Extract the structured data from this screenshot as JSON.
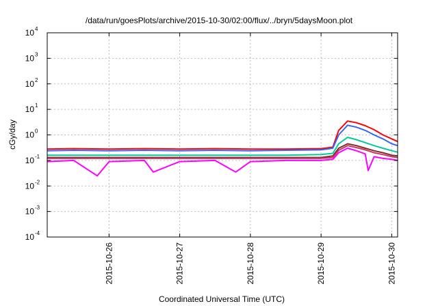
{
  "chart_data": {
    "type": "line",
    "title": "/data/run/goesPlots/archive/2015-10-30/02:00/flux/../bryn/5daysMoon.plot",
    "xlabel": "Coordinated Universal Time (UTC)",
    "ylabel": "cGy/day",
    "yscale": "log",
    "ylim": [
      0.0001,
      10000
    ],
    "xlim": [
      "2015-10-25T03:00",
      "2015-10-30T02:00"
    ],
    "grid": "dashed, at tick positions",
    "legend": "none",
    "y_ticks": [
      {
        "exp": "-4",
        "value": 0.0001
      },
      {
        "exp": "-3",
        "value": 0.001
      },
      {
        "exp": "-2",
        "value": 0.01
      },
      {
        "exp": "-1",
        "value": 0.1
      },
      {
        "value": 1,
        "label": "10",
        "exp": "0"
      },
      {
        "value": 10,
        "label": "10",
        "exp": "1"
      },
      {
        "value": 100,
        "label": "10",
        "exp": "2"
      },
      {
        "value": 1000,
        "label": "10",
        "exp": "3"
      },
      {
        "value": 10000,
        "label": "10",
        "exp": "4"
      }
    ],
    "x_ticks": [
      "2015-10-26",
      "2015-10-27",
      "2015-10-28",
      "2015-10-29",
      "2015-10-30"
    ],
    "y_tick_base": "10",
    "series": [
      {
        "color": "#ff0000",
        "points": [
          [
            "2015-10-25T03:00",
            0.28
          ],
          [
            "2015-10-25T12:00",
            0.29
          ],
          [
            "2015-10-26T00:00",
            0.28
          ],
          [
            "2015-10-26T12:00",
            0.29
          ],
          [
            "2015-10-27T00:00",
            0.28
          ],
          [
            "2015-10-27T12:00",
            0.29
          ],
          [
            "2015-10-28T00:00",
            0.28
          ],
          [
            "2015-10-28T12:00",
            0.28
          ],
          [
            "2015-10-29T00:00",
            0.29
          ],
          [
            "2015-10-29T04:00",
            0.33
          ],
          [
            "2015-10-29T06:00",
            1.5
          ],
          [
            "2015-10-29T09:00",
            3.5
          ],
          [
            "2015-10-29T12:00",
            3.0
          ],
          [
            "2015-10-29T15:00",
            2.3
          ],
          [
            "2015-10-29T18:00",
            1.6
          ],
          [
            "2015-10-29T21:00",
            1.0
          ],
          [
            "2015-10-30T00:00",
            0.7
          ],
          [
            "2015-10-30T02:00",
            0.55
          ]
        ]
      },
      {
        "color": "#3366ff",
        "points": [
          [
            "2015-10-25T03:00",
            0.24
          ],
          [
            "2015-10-25T12:00",
            0.25
          ],
          [
            "2015-10-26T00:00",
            0.24
          ],
          [
            "2015-10-26T12:00",
            0.25
          ],
          [
            "2015-10-27T00:00",
            0.24
          ],
          [
            "2015-10-27T12:00",
            0.25
          ],
          [
            "2015-10-28T00:00",
            0.24
          ],
          [
            "2015-10-28T12:00",
            0.25
          ],
          [
            "2015-10-29T00:00",
            0.26
          ],
          [
            "2015-10-29T04:00",
            0.3
          ],
          [
            "2015-10-29T06:00",
            1.0
          ],
          [
            "2015-10-29T09:00",
            2.4
          ],
          [
            "2015-10-29T12:00",
            2.0
          ],
          [
            "2015-10-29T15:00",
            1.5
          ],
          [
            "2015-10-29T18:00",
            1.0
          ],
          [
            "2015-10-29T21:00",
            0.7
          ],
          [
            "2015-10-30T00:00",
            0.45
          ],
          [
            "2015-10-30T02:00",
            0.38
          ]
        ]
      },
      {
        "color": "#00cc99",
        "points": [
          [
            "2015-10-25T03:00",
            0.16
          ],
          [
            "2015-10-25T12:00",
            0.16
          ],
          [
            "2015-10-26T00:00",
            0.16
          ],
          [
            "2015-10-26T12:00",
            0.16
          ],
          [
            "2015-10-27T00:00",
            0.16
          ],
          [
            "2015-10-27T12:00",
            0.16
          ],
          [
            "2015-10-28T00:00",
            0.16
          ],
          [
            "2015-10-28T12:00",
            0.16
          ],
          [
            "2015-10-29T00:00",
            0.17
          ],
          [
            "2015-10-29T04:00",
            0.19
          ],
          [
            "2015-10-29T06:00",
            0.45
          ],
          [
            "2015-10-29T09:00",
            0.8
          ],
          [
            "2015-10-29T12:00",
            0.65
          ],
          [
            "2015-10-29T15:00",
            0.5
          ],
          [
            "2015-10-29T18:00",
            0.38
          ],
          [
            "2015-10-29T21:00",
            0.3
          ],
          [
            "2015-10-30T00:00",
            0.24
          ],
          [
            "2015-10-30T02:00",
            0.21
          ]
        ]
      },
      {
        "color": "#7b2d26",
        "points": [
          [
            "2015-10-25T03:00",
            0.13
          ],
          [
            "2015-10-25T12:00",
            0.13
          ],
          [
            "2015-10-26T00:00",
            0.13
          ],
          [
            "2015-10-26T12:00",
            0.13
          ],
          [
            "2015-10-27T00:00",
            0.13
          ],
          [
            "2015-10-27T12:00",
            0.13
          ],
          [
            "2015-10-28T00:00",
            0.13
          ],
          [
            "2015-10-28T12:00",
            0.13
          ],
          [
            "2015-10-29T00:00",
            0.13
          ],
          [
            "2015-10-29T04:00",
            0.15
          ],
          [
            "2015-10-29T06:00",
            0.3
          ],
          [
            "2015-10-29T09:00",
            0.45
          ],
          [
            "2015-10-29T12:00",
            0.38
          ],
          [
            "2015-10-29T15:00",
            0.3
          ],
          [
            "2015-10-29T18:00",
            0.24
          ],
          [
            "2015-10-29T21:00",
            0.2
          ],
          [
            "2015-10-30T00:00",
            0.16
          ],
          [
            "2015-10-30T02:00",
            0.15
          ]
        ]
      },
      {
        "color": "#cc3366",
        "points": [
          [
            "2015-10-25T03:00",
            0.12
          ],
          [
            "2015-10-25T12:00",
            0.12
          ],
          [
            "2015-10-26T00:00",
            0.12
          ],
          [
            "2015-10-26T12:00",
            0.12
          ],
          [
            "2015-10-27T00:00",
            0.12
          ],
          [
            "2015-10-27T12:00",
            0.12
          ],
          [
            "2015-10-28T00:00",
            0.12
          ],
          [
            "2015-10-28T12:00",
            0.12
          ],
          [
            "2015-10-29T00:00",
            0.12
          ],
          [
            "2015-10-29T04:00",
            0.13
          ],
          [
            "2015-10-29T06:00",
            0.25
          ],
          [
            "2015-10-29T09:00",
            0.38
          ],
          [
            "2015-10-29T12:00",
            0.32
          ],
          [
            "2015-10-29T15:00",
            0.26
          ],
          [
            "2015-10-29T18:00",
            0.2
          ],
          [
            "2015-10-29T21:00",
            0.17
          ],
          [
            "2015-10-30T00:00",
            0.14
          ],
          [
            "2015-10-30T02:00",
            0.13
          ]
        ]
      },
      {
        "color": "#ff00ff",
        "points": [
          [
            "2015-10-25T03:00",
            0.09
          ],
          [
            "2015-10-25T12:00",
            0.1
          ],
          [
            "2015-10-25T20:00",
            0.025
          ],
          [
            "2015-10-26T00:00",
            0.09
          ],
          [
            "2015-10-26T12:00",
            0.1
          ],
          [
            "2015-10-26T15:00",
            0.035
          ],
          [
            "2015-10-27T00:00",
            0.09
          ],
          [
            "2015-10-27T12:00",
            0.1
          ],
          [
            "2015-10-27T19:00",
            0.035
          ],
          [
            "2015-10-28T00:00",
            0.09
          ],
          [
            "2015-10-28T12:00",
            0.1
          ],
          [
            "2015-10-29T00:00",
            0.1
          ],
          [
            "2015-10-29T04:00",
            0.11
          ],
          [
            "2015-10-29T06:00",
            0.2
          ],
          [
            "2015-10-29T09:00",
            0.3
          ],
          [
            "2015-10-29T12:00",
            0.24
          ],
          [
            "2015-10-29T15:00",
            0.18
          ],
          [
            "2015-10-29T16:00",
            0.04
          ],
          [
            "2015-10-29T18:00",
            0.14
          ],
          [
            "2015-10-29T21:00",
            0.12
          ],
          [
            "2015-10-30T00:00",
            0.11
          ],
          [
            "2015-10-30T02:00",
            0.1
          ]
        ]
      }
    ]
  }
}
